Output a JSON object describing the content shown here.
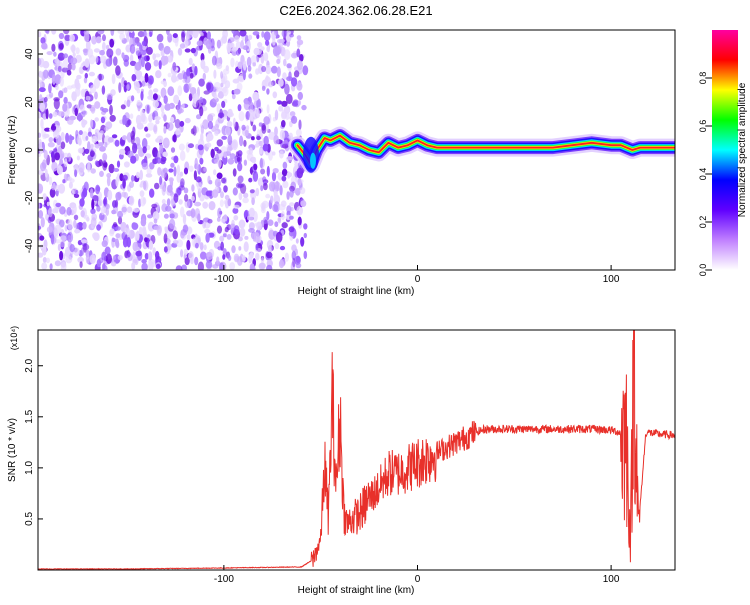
{
  "title": "C2E6.2024.362.06.28.E21",
  "chart_data": [
    {
      "type": "heatmap",
      "xlabel": "Height of straight line (km)",
      "ylabel": "Frequency (Hz)",
      "xlim": [
        -196,
        133
      ],
      "ylim": [
        -50,
        50
      ],
      "x_ticks": [
        -100,
        0,
        100
      ],
      "x_tick_labels": [
        "-100",
        "0",
        "100"
      ],
      "y_ticks": [
        -40,
        -20,
        0,
        20,
        40
      ],
      "y_tick_labels": [
        "-40",
        "-20",
        "0",
        "20",
        "40"
      ],
      "colorbar": {
        "label": "Normalized spectral amplitude",
        "range": [
          0,
          1
        ],
        "ticks": [
          0,
          0.2,
          0.4,
          0.6,
          0.8
        ],
        "tick_labels": [
          "0.0",
          "0.2",
          "0.4",
          "0.6",
          "0.8"
        ],
        "colors": [
          "#ffffff",
          "#c080ff",
          "#6000ff",
          "#0000ff",
          "#00ffff",
          "#00ff00",
          "#ffff00",
          "#ff0000",
          "#ff00a0"
        ]
      },
      "noise_region": {
        "x_range": [
          -196,
          -62
        ],
        "y_range": [
          -50,
          50
        ]
      },
      "ridge": {
        "x": [
          -62,
          -58,
          -55,
          -52,
          -48,
          -45,
          -40,
          -35,
          -30,
          -25,
          -20,
          -15,
          -10,
          -5,
          0,
          5,
          10,
          20,
          30,
          40,
          50,
          60,
          70,
          80,
          90,
          100,
          105,
          108,
          111,
          115,
          120,
          125,
          133
        ],
        "y": [
          2,
          -2,
          -6,
          0,
          5,
          4,
          6,
          3,
          2,
          0,
          -1,
          3,
          1,
          2,
          4,
          2,
          1,
          1,
          1,
          1,
          1,
          1,
          1,
          2,
          3,
          2,
          2,
          1,
          0,
          1,
          1,
          1,
          1
        ]
      },
      "grid": false,
      "legend": "colorbar-right"
    },
    {
      "type": "line",
      "xlabel": "Height of straight line (km)",
      "ylabel": "SNR (10 * v/v)",
      "y_multiplier_label": "(x10⁴)",
      "xlim": [
        -196,
        133
      ],
      "ylim": [
        0,
        2.35
      ],
      "x_ticks": [
        -100,
        0,
        100
      ],
      "x_tick_labels": [
        "-100",
        "0",
        "100"
      ],
      "y_ticks": [
        0.5,
        1.0,
        1.5,
        2.0
      ],
      "y_tick_labels": [
        "0.5",
        "1.0",
        "1.5",
        "2.0"
      ],
      "color": "#e8302a",
      "series": [
        {
          "x": [
            -196,
            -150,
            -100,
            -60,
            -54,
            -50,
            -48,
            -46,
            -44,
            -42,
            -40,
            -38,
            -36,
            -34,
            -30,
            -25,
            -20,
            -15,
            -10,
            -5,
            0,
            5,
            10,
            15,
            20,
            25,
            30,
            35,
            40,
            50,
            60,
            70,
            80,
            90,
            100,
            104,
            108,
            110,
            112,
            114,
            118,
            125,
            133
          ],
          "y": [
            0.01,
            0.01,
            0.02,
            0.03,
            0.1,
            0.3,
            1.05,
            0.5,
            1.7,
            0.8,
            1.5,
            0.55,
            0.45,
            0.5,
            0.55,
            0.7,
            0.8,
            0.95,
            0.95,
            1.0,
            1.05,
            1.1,
            1.15,
            1.2,
            1.25,
            1.3,
            1.35,
            1.38,
            1.38,
            1.38,
            1.38,
            1.38,
            1.38,
            1.38,
            1.37,
            1.35,
            1.3,
            0.25,
            2.3,
            0.4,
            1.35,
            1.33,
            1.32
          ]
        }
      ],
      "grid": false
    }
  ]
}
